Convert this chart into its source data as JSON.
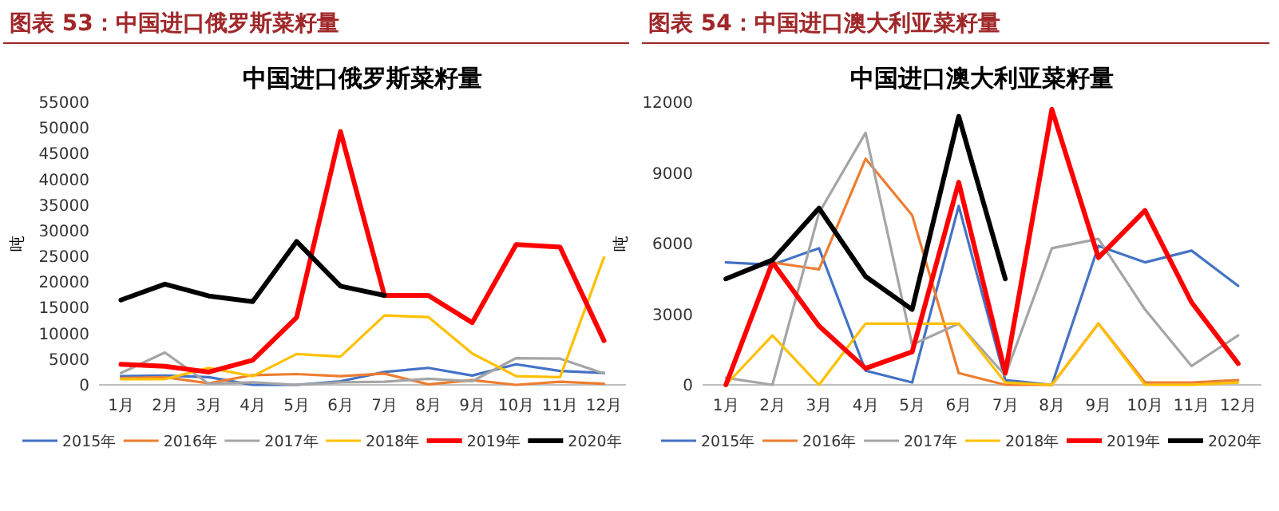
{
  "chart_data": [
    {
      "type": "line",
      "title": "图表 53：中国进口俄罗斯菜籽量",
      "subtitle": "中国进口俄罗斯菜籽量",
      "ylabel": "吨",
      "categories": [
        "1月",
        "2月",
        "3月",
        "4月",
        "5月",
        "6月",
        "7月",
        "8月",
        "9月",
        "10月",
        "11月",
        "12月"
      ],
      "ylim": [
        0,
        55000
      ],
      "yticks": [
        0,
        5000,
        10000,
        15000,
        20000,
        25000,
        30000,
        35000,
        40000,
        45000,
        50000,
        55000
      ],
      "grid": false,
      "legend": "bottom",
      "marker": "none",
      "line_style": "solid",
      "series": [
        {
          "name": "2015年",
          "color": "#4472c4",
          "values": [
            1700,
            1800,
            1500,
            0,
            0,
            700,
            2500,
            3300,
            1800,
            4000,
            2700,
            2300
          ]
        },
        {
          "name": "2016年",
          "color": "#ed7d31",
          "values": [
            1300,
            1500,
            300,
            1900,
            2100,
            1700,
            2200,
            100,
            900,
            0,
            600,
            200
          ]
        },
        {
          "name": "2017年",
          "color": "#a5a5a5",
          "values": [
            2300,
            6300,
            200,
            500,
            0,
            500,
            600,
            1200,
            700,
            5200,
            5100,
            2200
          ]
        },
        {
          "name": "2018年",
          "color": "#ffc000",
          "values": [
            1100,
            1100,
            3300,
            1700,
            6000,
            5500,
            13500,
            13200,
            6100,
            1700,
            1500,
            24800
          ]
        },
        {
          "name": "2019年",
          "color": "#ff0000",
          "values": [
            4000,
            3600,
            2500,
            4800,
            13100,
            49300,
            17400,
            17400,
            12100,
            27300,
            26800,
            8600
          ]
        },
        {
          "name": "2020年",
          "color": "#000000",
          "values": [
            16500,
            19600,
            17300,
            16200,
            27900,
            19200,
            17400,
            null,
            null,
            null,
            null,
            null
          ]
        }
      ]
    },
    {
      "type": "line",
      "title": "图表 54：中国进口澳大利亚菜籽量",
      "subtitle": "中国进口澳大利亚菜籽量",
      "ylabel": "吨",
      "categories": [
        "1月",
        "2月",
        "3月",
        "4月",
        "5月",
        "6月",
        "7月",
        "8月",
        "9月",
        "10月",
        "11月",
        "12月"
      ],
      "ylim": [
        0,
        12000
      ],
      "yticks": [
        0,
        3000,
        6000,
        9000,
        12000
      ],
      "grid": false,
      "legend": "bottom",
      "marker": "none",
      "line_style": "solid",
      "series": [
        {
          "name": "2015年",
          "color": "#4472c4",
          "values": [
            5200,
            5100,
            5800,
            600,
            100,
            7600,
            200,
            0,
            5900,
            5200,
            5700,
            4200
          ]
        },
        {
          "name": "2016年",
          "color": "#ed7d31",
          "values": [
            0,
            5200,
            4900,
            9600,
            7200,
            500,
            0,
            0,
            2600,
            100,
            100,
            200
          ]
        },
        {
          "name": "2017年",
          "color": "#a5a5a5",
          "values": [
            300,
            0,
            7300,
            10700,
            1700,
            2600,
            400,
            5800,
            6200,
            3200,
            800,
            2100
          ]
        },
        {
          "name": "2018年",
          "color": "#ffc000",
          "values": [
            0,
            2100,
            0,
            2600,
            2600,
            2600,
            100,
            0,
            2600,
            0,
            0,
            100
          ]
        },
        {
          "name": "2019年",
          "color": "#ff0000",
          "values": [
            0,
            5200,
            2500,
            700,
            1400,
            8600,
            500,
            11700,
            5400,
            7400,
            3500,
            900
          ]
        },
        {
          "name": "2020年",
          "color": "#000000",
          "values": [
            4500,
            5300,
            7500,
            4600,
            3200,
            11400,
            4500,
            null,
            null,
            null,
            null,
            null
          ]
        }
      ]
    }
  ]
}
